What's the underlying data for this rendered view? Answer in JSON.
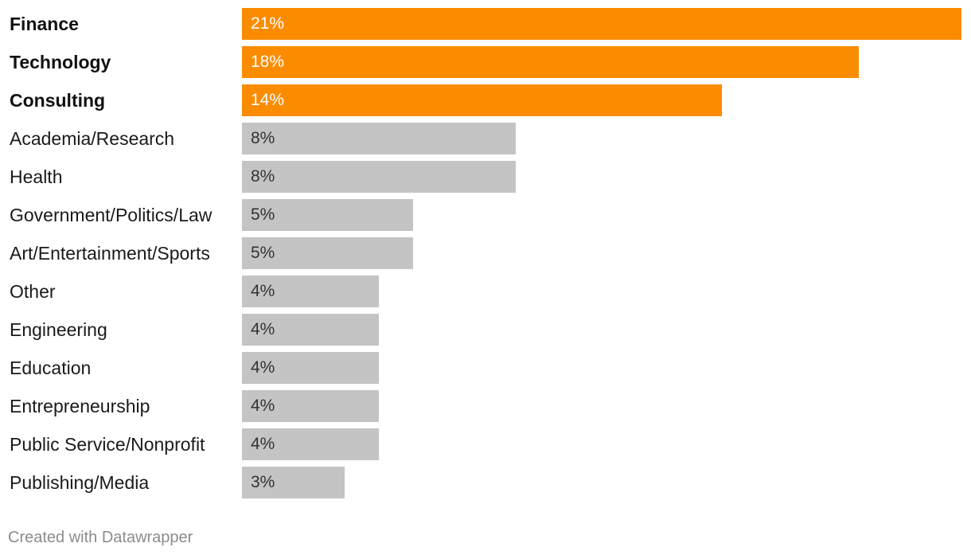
{
  "chart_data": {
    "type": "bar",
    "orientation": "horizontal",
    "categories": [
      "Finance",
      "Technology",
      "Consulting",
      "Academia/Research",
      "Health",
      "Government/Politics/Law",
      "Art/Entertainment/Sports",
      "Other",
      "Engineering",
      "Education",
      "Entrepreneurship",
      "Public Service/Nonprofit",
      "Publishing/Media"
    ],
    "values": [
      21,
      18,
      14,
      8,
      8,
      5,
      5,
      4,
      4,
      4,
      4,
      4,
      3
    ],
    "value_labels": [
      "21%",
      "18%",
      "14%",
      "8%",
      "8%",
      "5%",
      "5%",
      "4%",
      "4%",
      "4%",
      "4%",
      "4%",
      "3%"
    ],
    "highlighted": [
      true,
      true,
      true,
      false,
      false,
      false,
      false,
      false,
      false,
      false,
      false,
      false,
      false
    ],
    "unit": "%",
    "xlim": [
      0,
      21
    ],
    "grid": false,
    "colors": {
      "highlight": "#FB8C00",
      "default": "#C4C4C4",
      "highlight_text": "#FFFFFF",
      "default_text": "#333333"
    }
  },
  "footer": {
    "credit": "Created with Datawrapper"
  }
}
